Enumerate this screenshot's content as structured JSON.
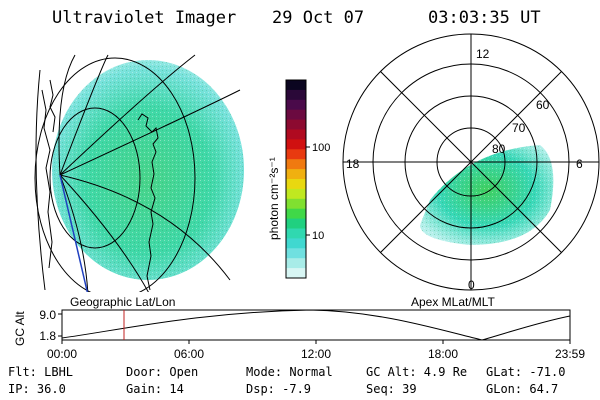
{
  "header": {
    "title": "Ultraviolet Imager",
    "date": "29 Oct 07",
    "time": "03:03:35 UT"
  },
  "geo_panel": {
    "label": "Geographic Lat/Lon"
  },
  "polar_panel": {
    "label": "Apex MLat/MLT",
    "mlt_labels": [
      "12",
      "18",
      "6",
      "0"
    ],
    "mlat_labels": [
      "60",
      "70",
      "80"
    ]
  },
  "colorbar": {
    "label": "photon cm⁻²s⁻¹",
    "ticks": [
      "100",
      "10"
    ],
    "colors": [
      "#0b0520",
      "#2a0838",
      "#4a0a4a",
      "#6b0a40",
      "#8c0a30",
      "#b00a20",
      "#d01010",
      "#e83a10",
      "#f07a10",
      "#f0b010",
      "#e8d810",
      "#c0e820",
      "#80e030",
      "#40d848",
      "#20d080",
      "#30d8b0",
      "#40d8d0",
      "#70e0e0",
      "#a8ece8",
      "#d8f6f4"
    ]
  },
  "altitude_plot": {
    "ylabel": "GC Alt",
    "yticks": [
      "9.0",
      "1.8"
    ],
    "xticks": [
      "00:00",
      "06:00",
      "12:00",
      "18:00",
      "23:59"
    ]
  },
  "info": {
    "row1": {
      "flt": "Flt: LBHL",
      "door": "Door: Open",
      "mode": "Mode: Normal",
      "gcalt": "GC Alt: 4.9 Re",
      "glat": "GLat: -71.0"
    },
    "row2": {
      "ip": "IP: 36.0",
      "gain": "Gain: 14",
      "dsp": "Dsp:   -7.9",
      "seq": "Seq: 39",
      "glon": "GLon:  64.7"
    }
  },
  "colors": {
    "aurora_main": "#40d888",
    "aurora_light": "#a8ece8",
    "axis": "#000000",
    "marker": "#c02020"
  }
}
